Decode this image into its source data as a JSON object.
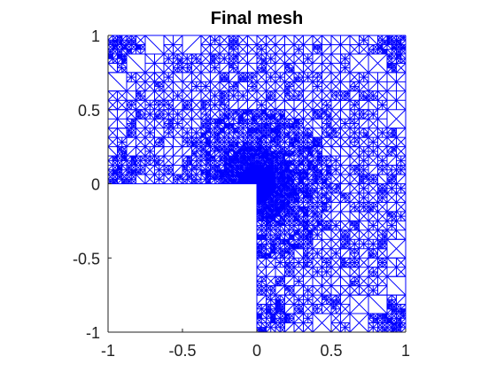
{
  "figure": {
    "title": "Final mesh"
  },
  "chart_data": {
    "type": "mesh",
    "domain": "L-shaped region [-1,1]x[-1,1] minus [-1,0)x[-1,0)",
    "xlim": [
      -1,
      1
    ],
    "ylim": [
      -1,
      1
    ],
    "x_ticks": [
      -1,
      -0.5,
      0,
      0.5,
      1
    ],
    "x_tick_labels": [
      "-1",
      "-0.5",
      "0",
      "0.5",
      "1"
    ],
    "y_ticks": [
      -1,
      -0.5,
      0,
      0.5,
      1
    ],
    "y_tick_labels": [
      "-1",
      "-0.5",
      "0",
      "0.5",
      "1"
    ],
    "mesh_color": "#0000ff",
    "refinement_point": [
      0,
      0
    ],
    "grid": false
  }
}
